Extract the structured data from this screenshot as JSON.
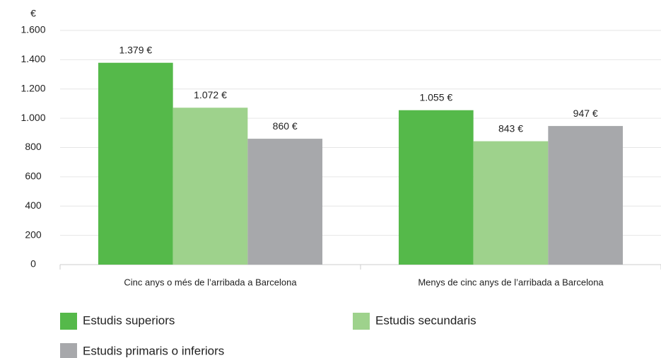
{
  "chart_data": {
    "type": "bar",
    "ylabel": "€",
    "categories": [
      "Cinc anys o més de l’arribada a Barcelona",
      "Menys de cinc anys de l’arribada a Barcelona"
    ],
    "series": [
      {
        "name": "Estudis superiors",
        "color": "#55b94a",
        "values": [
          1379,
          1055
        ],
        "value_labels": [
          "1.379 €",
          "1.055 €"
        ]
      },
      {
        "name": "Estudis secundaris",
        "color": "#9ed28c",
        "values": [
          1072,
          843
        ],
        "value_labels": [
          "1.072 €",
          "843 €"
        ]
      },
      {
        "name": "Estudis primaris o inferiors",
        "color": "#a7a8ab",
        "values": [
          860,
          947
        ],
        "value_labels": [
          "860 €",
          "947 €"
        ]
      }
    ],
    "ylim": [
      0,
      1600
    ],
    "yticks": [
      0,
      200,
      400,
      600,
      800,
      {
        "value": 1000,
        "label": "1.000"
      },
      {
        "value": 1200,
        "label": "1.200"
      },
      {
        "value": 1400,
        "label": "1.400"
      },
      {
        "value": 1600,
        "label": "1.600"
      }
    ],
    "grid": true
  }
}
